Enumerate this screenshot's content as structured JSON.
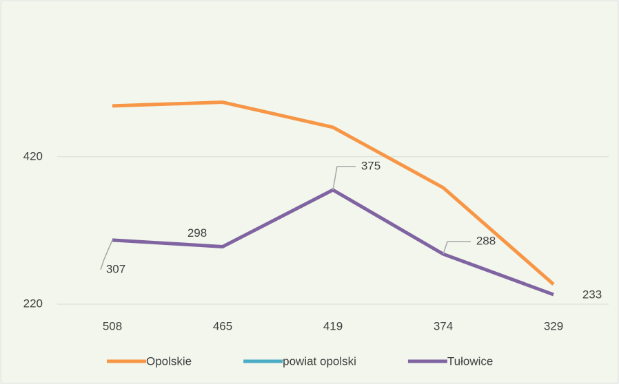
{
  "chart_data": {
    "type": "line",
    "categories": [
      "508",
      "465",
      "419",
      "374",
      "329"
    ],
    "series": [
      {
        "name": "Opolskie",
        "color": "#f79646",
        "values": [
          489,
          494,
          460,
          378,
          247
        ]
      },
      {
        "name": "powiat opolski",
        "color": "#4bacc6",
        "values": [
          null,
          null,
          null,
          null,
          null
        ]
      },
      {
        "name": "Tułowice",
        "color": "#8064a2",
        "values": [
          307,
          298,
          375,
          288,
          233
        ]
      }
    ],
    "ylim": [
      220,
      600
    ],
    "yticks": [
      220,
      420
    ],
    "grid": true,
    "legend": "bottom"
  }
}
